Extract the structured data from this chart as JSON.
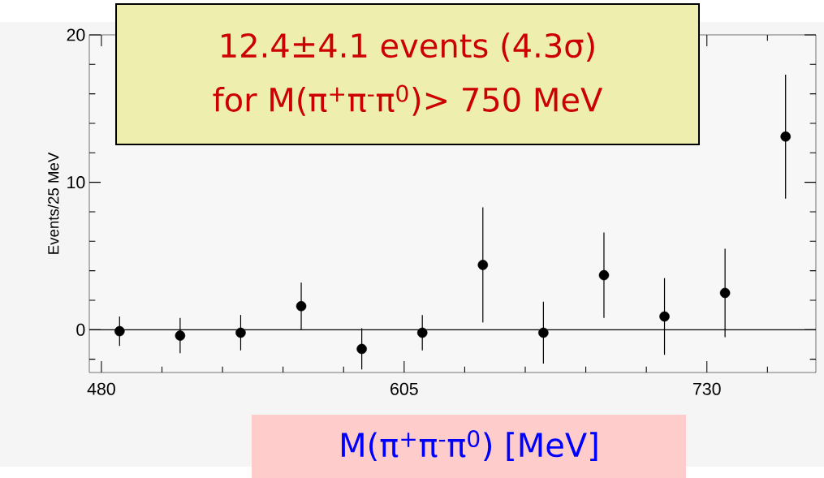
{
  "chart_data": {
    "type": "scatter",
    "xlabel": "M(π$^{+}$π$^{-}$π$^{0}$) [MeV]",
    "ylabel": "Events/25 MeV",
    "annotations": [
      "12.4±4.1 events (4.3σ)",
      "for M(π$^{+}$π$^{-}$π$^{0}$)> 750 MeV"
    ],
    "x": [
      487.5,
      512.5,
      537.5,
      562.5,
      587.5,
      612.5,
      637.5,
      662.5,
      687.5,
      712.5,
      737.5,
      762.5
    ],
    "series": [
      {
        "color": "#000000",
        "values": [
          -0.1,
          -0.4,
          -0.2,
          1.6,
          -1.3,
          -0.2,
          4.4,
          -0.2,
          3.7,
          0.9,
          2.5,
          13.1
        ],
        "errors": [
          1.0,
          1.2,
          1.2,
          1.6,
          1.4,
          1.2,
          3.9,
          2.1,
          2.9,
          2.6,
          3.0,
          4.2
        ]
      }
    ],
    "xlim": [
      475,
      775
    ],
    "ylim": [
      -2.9,
      20
    ],
    "xticks": [
      480,
      {
        "value": 505,
        "label": null
      },
      {
        "value": 530,
        "label": null
      },
      {
        "value": 555,
        "label": null
      },
      {
        "value": 580,
        "label": null
      },
      605,
      {
        "value": 630,
        "label": null
      },
      {
        "value": 655,
        "label": null
      },
      {
        "value": 680,
        "label": null
      },
      {
        "value": 705,
        "label": null
      },
      730,
      {
        "value": 755,
        "label": null
      }
    ],
    "yticks": [
      {
        "value": -2,
        "label": null
      },
      0,
      {
        "value": 2,
        "label": null
      },
      {
        "value": 4,
        "label": null
      },
      {
        "value": 6,
        "label": null
      },
      {
        "value": 8,
        "label": null
      },
      10,
      {
        "value": 12,
        "label": null
      },
      {
        "value": 14,
        "label": null
      },
      {
        "value": 16,
        "label": null
      },
      {
        "value": 18,
        "label": null
      },
      20
    ],
    "ref_lines": [
      {
        "axis": "y",
        "value": 0,
        "color": "#000000"
      }
    ]
  }
}
